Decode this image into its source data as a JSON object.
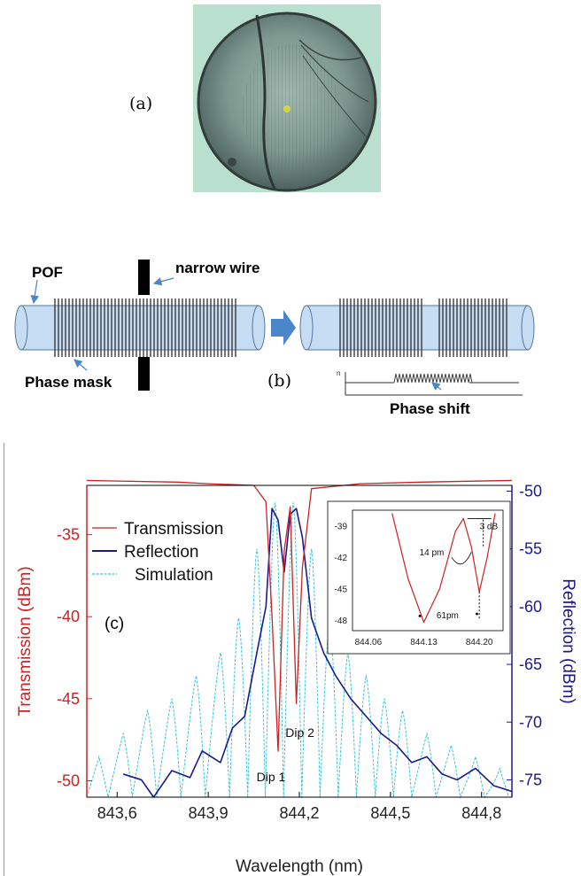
{
  "panel_a": {
    "label": "(a)"
  },
  "panel_b": {
    "label": "(b)",
    "pof_label": "POF",
    "wire_label": "narrow wire",
    "mask_label": "Phase mask",
    "shift_label": "Phase shift",
    "n_label": "n"
  },
  "panel_c": {
    "label": "(c)",
    "dip1": "Dip 1",
    "dip2": "Dip 2"
  },
  "colors": {
    "transmission": "#cc2222",
    "reflection": "#1a1a8c",
    "simulation": "#3fc4d8",
    "fiber": "#c6dcf2",
    "arrow": "#4a86c8"
  },
  "chart_data": {
    "type": "line",
    "xlabel": "Wavelength (nm)",
    "ylabel": "Transmission (dBm)",
    "ylabel_right": "Reflection (dBm)",
    "xlim": [
      843.5,
      844.9
    ],
    "ylim": [
      -51,
      -32
    ],
    "ylim_right": [
      -76.5,
      -49.5
    ],
    "x_ticks": [
      "843,6",
      "843,9",
      "844,2",
      "844,5",
      "844,8"
    ],
    "x_tick_values": [
      843.6,
      843.9,
      844.2,
      844.5,
      844.8
    ],
    "y_ticks": [
      "-35",
      "-40",
      "-45",
      "-50"
    ],
    "y_tick_values": [
      -35,
      -40,
      -45,
      -50
    ],
    "y_right_ticks": [
      "-50",
      "-55",
      "-60",
      "-65",
      "-70",
      "-75"
    ],
    "y_right_tick_values": [
      -50,
      -55,
      -60,
      -65,
      -70,
      -75
    ],
    "legend_position": "top-left",
    "series": [
      {
        "name": "Transmission",
        "axis": "left",
        "x": [
          843.5,
          843.8,
          843.9,
          844.05,
          844.09,
          844.11,
          844.13,
          844.15,
          844.17,
          844.19,
          844.21,
          844.24,
          844.4,
          844.6,
          844.9
        ],
        "values": [
          -31.7,
          -31.8,
          -31.9,
          -32.0,
          -33.0,
          -40.0,
          -48.2,
          -36.0,
          -33.3,
          -45.3,
          -37.0,
          -32.2,
          -31.9,
          -31.8,
          -31.7
        ]
      },
      {
        "name": "Reflection",
        "axis": "right",
        "x": [
          843.62,
          843.68,
          843.72,
          843.78,
          843.84,
          843.88,
          843.94,
          843.98,
          844.02,
          844.06,
          844.09,
          844.11,
          844.13,
          844.15,
          844.17,
          844.19,
          844.21,
          844.24,
          844.28,
          844.32,
          844.37,
          844.42,
          844.47,
          844.52,
          844.57,
          844.62,
          844.67,
          844.72,
          844.78,
          844.84,
          844.9
        ],
        "values": [
          -74.5,
          -75,
          -76.5,
          -74.2,
          -74.8,
          -72.5,
          -73.5,
          -70.5,
          -69.5,
          -64,
          -60,
          -51.5,
          -52.5,
          -57,
          -52,
          -51.5,
          -54,
          -61,
          -64,
          -66,
          -68,
          -69.5,
          -71,
          -72,
          -73.5,
          -73,
          -74.5,
          -75,
          -74,
          -75.5,
          -76
        ]
      },
      {
        "name": "Simulation",
        "axis": "right",
        "peaks_x": [
          843.54,
          843.62,
          843.7,
          843.78,
          843.86,
          843.94,
          844.0,
          844.06,
          844.12,
          844.18,
          844.24,
          844.3,
          844.36,
          844.42,
          844.48,
          844.54,
          844.62,
          844.7,
          844.78,
          844.86
        ],
        "peaks": [
          -73,
          -71,
          -69,
          -68,
          -66,
          -64,
          -61,
          -55,
          -51,
          -51,
          -55,
          -61,
          -64,
          -66,
          -68,
          -69,
          -71,
          -72,
          -73,
          -74
        ],
        "floor": -76.5
      }
    ],
    "inset": {
      "x_ticks": [
        "844.06",
        "844.13",
        "844.20"
      ],
      "x_tick_values": [
        844.06,
        844.13,
        844.2
      ],
      "y_ticks": [
        "-39",
        "-42",
        "-45",
        "-48"
      ],
      "y_tick_values": [
        -39,
        -42,
        -45,
        -48
      ],
      "xlim": [
        844.04,
        844.23
      ],
      "ylim": [
        -49,
        -37.5
      ],
      "annotations": [
        "14 pm",
        "3 dB",
        "61pm"
      ],
      "x": [
        844.09,
        844.11,
        844.13,
        844.15,
        844.17,
        844.18,
        844.19,
        844.2,
        844.21,
        844.22
      ],
      "values": [
        -37.8,
        -44,
        -48.2,
        -45,
        -39.5,
        -38.3,
        -41,
        -45.3,
        -42,
        -37.8
      ]
    }
  }
}
